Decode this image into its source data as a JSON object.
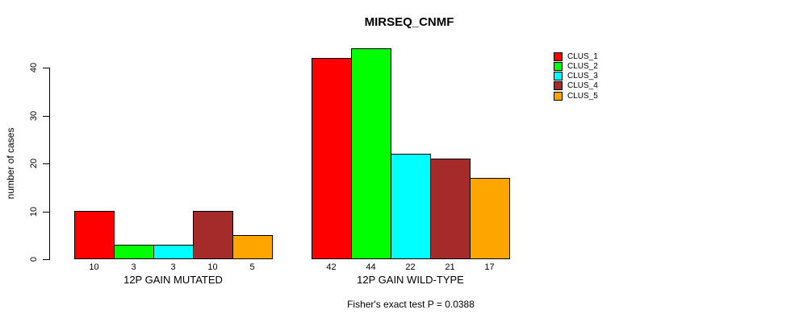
{
  "chart_data": {
    "type": "bar",
    "title": "MIRSEQ_CNMF",
    "ylabel": "number of cases",
    "xlabel": "",
    "categories": [
      "12P GAIN MUTATED",
      "12P GAIN WILD-TYPE"
    ],
    "series": [
      {
        "name": "CLUS_1",
        "color": "#FF0000",
        "values": [
          10,
          42
        ]
      },
      {
        "name": "CLUS_2",
        "color": "#00FF00",
        "values": [
          3,
          44
        ]
      },
      {
        "name": "CLUS_3",
        "color": "#00FFFF",
        "values": [
          3,
          22
        ]
      },
      {
        "name": "CLUS_4",
        "color": "#A52A2A",
        "values": [
          10,
          21
        ]
      },
      {
        "name": "CLUS_5",
        "color": "#FFA500",
        "values": [
          5,
          17
        ]
      }
    ],
    "yticks": [
      0,
      10,
      20,
      30,
      40
    ],
    "ylim": [
      0,
      44
    ],
    "bar_value_labels": true,
    "grid": false,
    "legend_position": "right",
    "annotation": "Fisher's exact test P = 0.0388"
  }
}
